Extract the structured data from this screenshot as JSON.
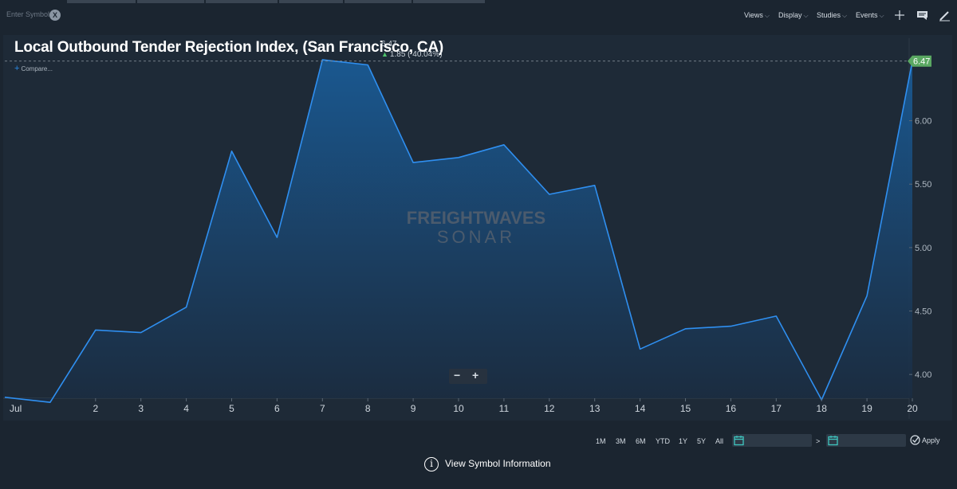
{
  "toolbar": {
    "symbol_placeholder": "Enter Symbol",
    "clear_label": "X",
    "menus": [
      "Views",
      "Display",
      "Studies",
      "Events"
    ]
  },
  "header": {
    "title": "Local Outbound Tender Rejection Index, (San Francisco, CA)",
    "last_value": "6.47",
    "change": "1.85 ( 40.04%)",
    "compare_label": "Compare..."
  },
  "chart_data": {
    "type": "area",
    "title": "Local Outbound Tender Rejection Index, (San Francisco, CA)",
    "x_tick_labels": [
      "Jul",
      "2",
      "3",
      "4",
      "5",
      "6",
      "7",
      "8",
      "9",
      "10",
      "11",
      "12",
      "13",
      "14",
      "15",
      "16",
      "17",
      "18",
      "19",
      "20"
    ],
    "y_tick_labels": [
      "4.00",
      "4.50",
      "5.00",
      "5.50",
      "6.00"
    ],
    "ylim": [
      3.75,
      6.6
    ],
    "series": [
      {
        "x": [
          "Jun 30",
          "Jul 1",
          "Jul 2",
          "Jul 3",
          "Jul 4",
          "Jul 5",
          "Jul 6",
          "Jul 7",
          "Jul 8",
          "Jul 9",
          "Jul 10",
          "Jul 11",
          "Jul 12",
          "Jul 13",
          "Jul 14",
          "Jul 15",
          "Jul 16",
          "Jul 17",
          "Jul 18",
          "Jul 19",
          "Jul 20"
        ],
        "values": [
          3.82,
          3.78,
          4.35,
          4.33,
          4.53,
          5.76,
          5.08,
          6.48,
          6.44,
          5.67,
          5.71,
          5.81,
          5.42,
          5.49,
          4.2,
          4.36,
          4.38,
          4.46,
          3.8,
          4.62,
          6.47
        ]
      }
    ],
    "last_value_label": "6.47",
    "line_color": "#2f8ff0",
    "fill_top_color": "#1a5a94",
    "fill_bottom_color": "#1b2c40",
    "grid": false,
    "watermark": [
      "FREIGHTWAVES",
      "SONAR"
    ]
  },
  "zoom": {
    "minus": "−",
    "plus": "+"
  },
  "range": {
    "buttons": [
      "1M",
      "3M",
      "6M",
      "YTD",
      "1Y",
      "5Y",
      "All"
    ],
    "separator": ">",
    "apply_label": "Apply"
  },
  "footer": {
    "info_icon": "i",
    "view_symbol_info": "View Symbol Information"
  },
  "colors": {
    "background": "#1b2530",
    "panel": "#1e2a37",
    "accent": "#2f8ff0",
    "up": "#4fc36b",
    "last_value_tag": "#5aa862"
  }
}
